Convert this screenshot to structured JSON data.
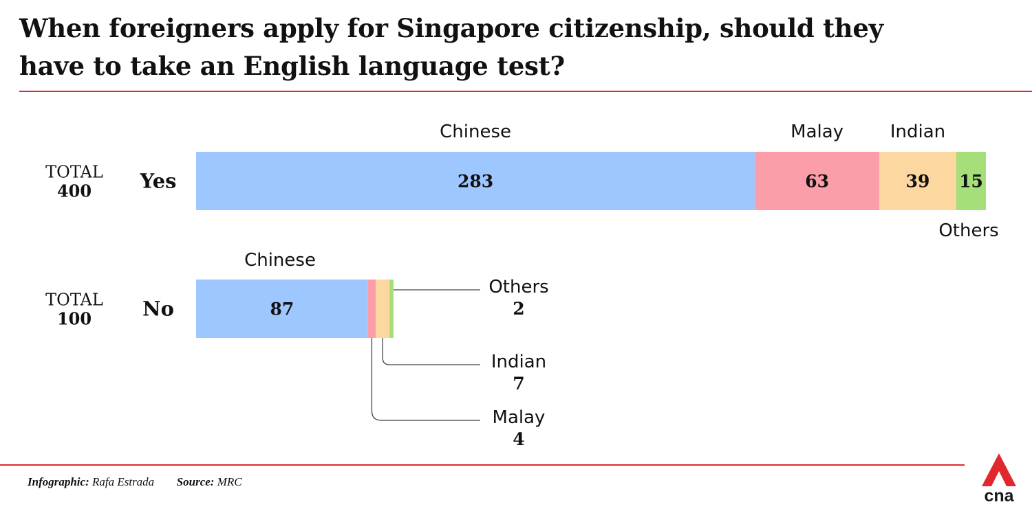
{
  "title": "When foreigners apply for Singapore citizenship, should they\nhave to take an English language test?",
  "colors": {
    "accent_red": "#e0282e",
    "Chinese": "#9fc7ff",
    "Malay": "#fb9ea9",
    "Indian": "#fdd7a0",
    "Others": "#a6de7a"
  },
  "footer": {
    "infographic_label": "Infographic:",
    "infographic_value": "Rafa Estrada",
    "source_label": "Source:",
    "source_value": "MRC"
  },
  "logo": {
    "text": "cna"
  },
  "chart_data": {
    "type": "bar",
    "orientation": "horizontal",
    "stacked": true,
    "categories": [
      "Yes",
      "No"
    ],
    "totals": [
      {
        "label": "TOTAL",
        "value": "400"
      },
      {
        "label": "TOTAL",
        "value": "100"
      }
    ],
    "series": [
      {
        "name": "Chinese",
        "values": [
          283,
          87
        ]
      },
      {
        "name": "Malay",
        "values": [
          63,
          4
        ]
      },
      {
        "name": "Indian",
        "values": [
          39,
          7
        ]
      },
      {
        "name": "Others",
        "values": [
          15,
          2
        ]
      }
    ],
    "grid": false,
    "legend": "none"
  }
}
